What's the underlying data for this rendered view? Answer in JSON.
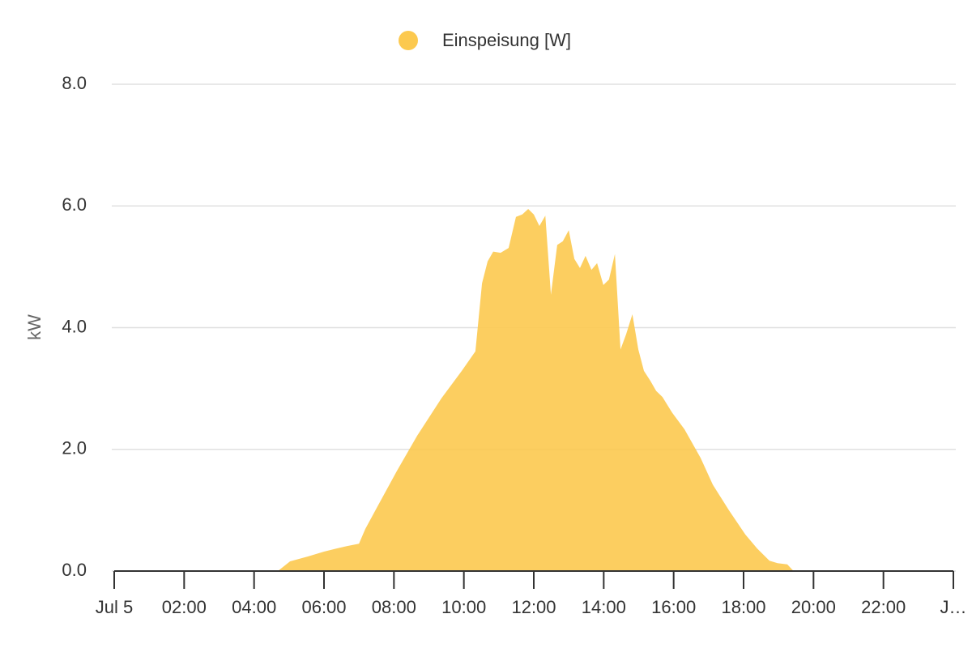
{
  "chart_data": {
    "type": "area",
    "legend": "Einspeisung [W]",
    "y_label": "kW",
    "series": [
      {
        "name": "Einspeisung [W]",
        "color": "#fcc94f",
        "x": [
          0,
          4.68,
          5.03,
          5.54,
          6.0,
          6.35,
          6.65,
          7.0,
          7.18,
          7.5,
          8.08,
          8.66,
          9.36,
          9.94,
          10.33,
          10.52,
          10.68,
          10.84,
          11.05,
          11.28,
          11.49,
          11.67,
          11.84,
          12.0,
          12.16,
          12.33,
          12.49,
          12.67,
          12.83,
          13.0,
          13.16,
          13.32,
          13.48,
          13.65,
          13.81,
          13.99,
          14.15,
          14.32,
          14.48,
          14.64,
          14.82,
          14.99,
          15.15,
          15.33,
          15.5,
          15.68,
          15.96,
          16.31,
          16.77,
          17.12,
          17.58,
          18.05,
          18.39,
          18.74,
          18.97,
          19.25,
          19.43,
          24
        ],
        "values": [
          0,
          0,
          0.16,
          0.24,
          0.32,
          0.37,
          0.41,
          0.45,
          0.69,
          1.03,
          1.64,
          2.22,
          2.84,
          3.29,
          3.61,
          4.73,
          5.09,
          5.25,
          5.23,
          5.31,
          5.82,
          5.86,
          5.95,
          5.86,
          5.67,
          5.84,
          4.54,
          5.36,
          5.42,
          5.6,
          5.13,
          4.98,
          5.18,
          4.95,
          5.06,
          4.7,
          4.79,
          5.21,
          3.64,
          3.89,
          4.22,
          3.64,
          3.29,
          3.13,
          2.96,
          2.86,
          2.6,
          2.33,
          1.86,
          1.42,
          1.0,
          0.6,
          0.37,
          0.17,
          0.13,
          0.11,
          0,
          0
        ]
      }
    ],
    "xlim": [
      0,
      24
    ],
    "xticks": [
      {
        "value": 0,
        "label": "Jul 5"
      },
      {
        "value": 2,
        "label": "02:00"
      },
      {
        "value": 4,
        "label": "04:00"
      },
      {
        "value": 6,
        "label": "06:00"
      },
      {
        "value": 8,
        "label": "08:00"
      },
      {
        "value": 10,
        "label": "10:00"
      },
      {
        "value": 12,
        "label": "12:00"
      },
      {
        "value": 14,
        "label": "14:00"
      },
      {
        "value": 16,
        "label": "16:00"
      },
      {
        "value": 18,
        "label": "18:00"
      },
      {
        "value": 20,
        "label": "20:00"
      },
      {
        "value": 22,
        "label": "22:00"
      },
      {
        "value": 24,
        "label": "J…"
      }
    ],
    "ylim": [
      0,
      8
    ],
    "yticks": [
      {
        "value": 0,
        "label": "0.0"
      },
      {
        "value": 2,
        "label": "2.0"
      },
      {
        "value": 4,
        "label": "4.0"
      },
      {
        "value": 6,
        "label": "6.0"
      },
      {
        "value": 8,
        "label": "8.0"
      }
    ],
    "grid": true
  }
}
